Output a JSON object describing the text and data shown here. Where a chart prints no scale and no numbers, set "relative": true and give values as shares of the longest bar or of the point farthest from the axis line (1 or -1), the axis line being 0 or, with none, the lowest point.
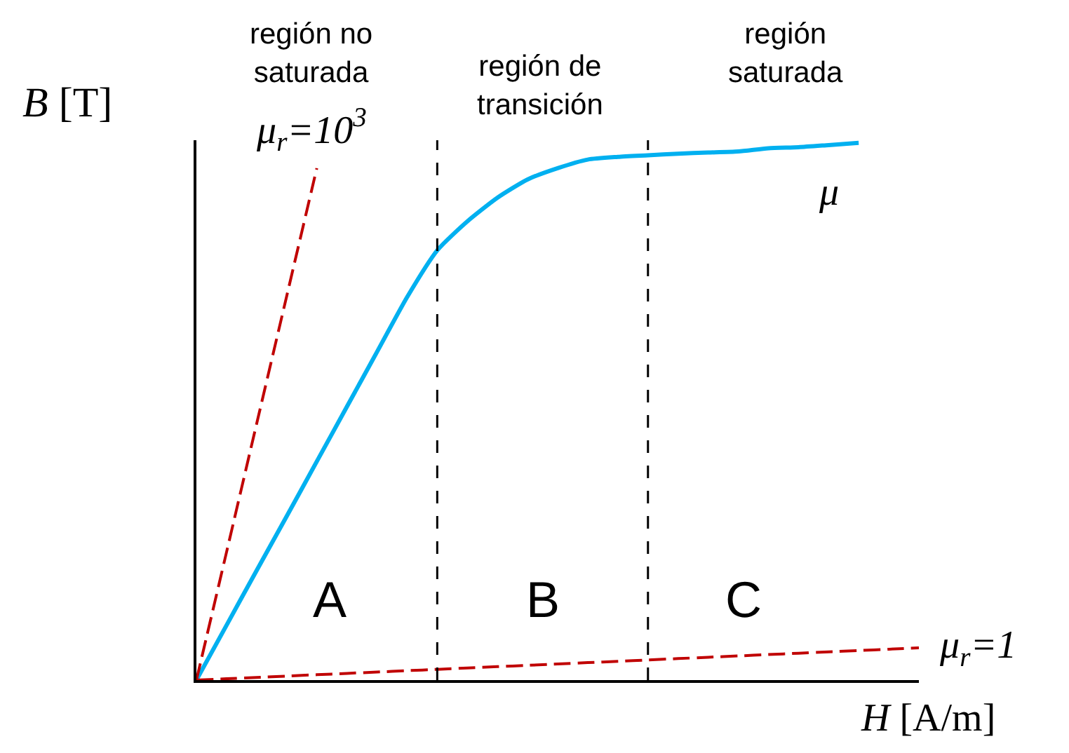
{
  "chart_data": {
    "type": "line",
    "relative": true,
    "xlabel": "H [A/m]",
    "ylabel": "B [T]",
    "categories": [
      null,
      null,
      null,
      null,
      null,
      null,
      null,
      null,
      null,
      null,
      null,
      null,
      null,
      null,
      null,
      null,
      null,
      null,
      null,
      null,
      null,
      null,
      null,
      null,
      null
    ],
    "series": [
      {
        "name": "μ",
        "color": "#00b0f0",
        "line_style": "solid",
        "values": [
          0,
          0.102,
          0.204,
          0.305,
          0.407,
          0.509,
          0.611,
          0.713,
          0.8,
          0.854,
          0.898,
          0.932,
          0.953,
          0.969,
          0.974,
          0.977,
          0.98,
          0.982,
          0.984,
          0.99,
          0.992,
          0.996,
          1,
          null,
          null
        ]
      },
      {
        "name": "μ$_{r}$=10$^{3}$",
        "color": "#c00000",
        "line_style": "dashed",
        "values": [
          0,
          0.238,
          0.477,
          0.715,
          0.953,
          null,
          null,
          null,
          null,
          null,
          null,
          null,
          null,
          null,
          null,
          null,
          null,
          null,
          null,
          null,
          null,
          null,
          null,
          null,
          null
        ]
      },
      {
        "name": "μ$_{r}$=1",
        "color": "#c00000",
        "line_style": "dashed",
        "values": [
          0,
          0.0025,
          0.005,
          0.0075,
          0.01,
          0.0125,
          0.015,
          0.0175,
          0.02,
          0.0225,
          0.025,
          0.0275,
          0.03,
          0.0325,
          0.035,
          0.0375,
          0.04,
          0.0425,
          0.045,
          0.0475,
          0.05,
          0.0525,
          0.055,
          0.0575,
          0.06
        ]
      }
    ],
    "annotations": [
      "región no\nsaturada",
      "región de\ntransición",
      "región\nsaturada",
      "A",
      "B",
      "C"
    ]
  }
}
